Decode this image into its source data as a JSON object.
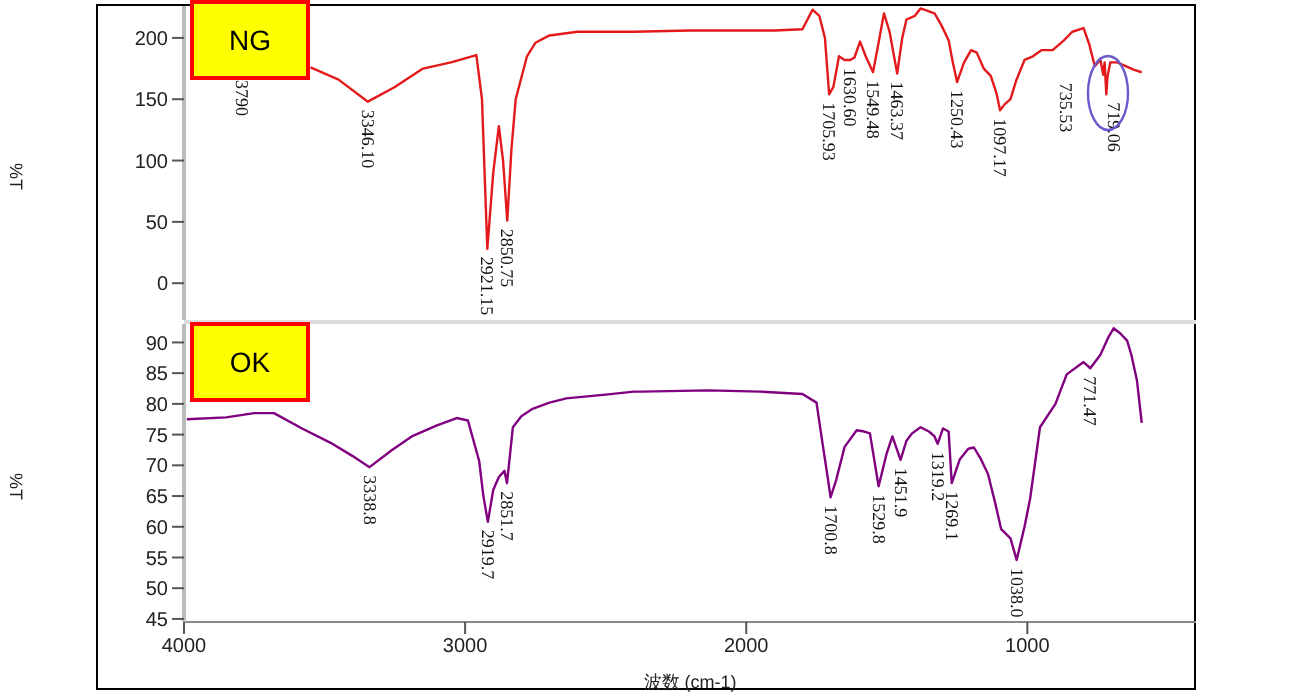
{
  "chart_data": [
    {
      "type": "line",
      "title": "NG",
      "ylabel": "%T",
      "xlim": [
        4000,
        400
      ],
      "xticks": [
        4000,
        3000,
        2000,
        1000
      ],
      "ylim": [
        -30,
        226
      ],
      "yticks": [
        0,
        50,
        100,
        150,
        200
      ],
      "tick_labels": "y",
      "grid": false,
      "legend": false,
      "marker": "none",
      "line_style": "solid",
      "x": [
        3550,
        3450,
        3346,
        3250,
        3150,
        3050,
        2960,
        2940,
        2921,
        2900,
        2880,
        2865,
        2850,
        2835,
        2820,
        2780,
        2750,
        2700,
        2600,
        2400,
        2200,
        2000,
        1900,
        1800,
        1764,
        1740,
        1720,
        1705,
        1690,
        1670,
        1650,
        1630,
        1615,
        1595,
        1575,
        1549,
        1530,
        1510,
        1490,
        1463,
        1445,
        1430,
        1400,
        1380,
        1355,
        1330,
        1305,
        1280,
        1265,
        1250,
        1225,
        1200,
        1180,
        1155,
        1130,
        1110,
        1097,
        1080,
        1060,
        1040,
        1010,
        980,
        950,
        910,
        870,
        840,
        800,
        780,
        760,
        740,
        735,
        730,
        725,
        719,
        715,
        705,
        680,
        650,
        620,
        593
      ],
      "series": [
        {
          "color": "#e31a1c",
          "values": [
            176,
            166,
            148,
            160,
            175,
            180,
            186,
            150,
            28,
            90,
            128,
            100,
            51,
            110,
            150,
            185,
            196,
            202,
            205,
            205,
            206,
            206,
            206,
            207,
            223,
            218,
            200,
            154,
            160,
            185,
            182,
            182,
            184,
            197,
            185,
            172,
            195,
            220,
            205,
            171,
            200,
            215,
            218,
            224,
            222,
            220,
            210,
            198,
            180,
            164,
            180,
            190,
            188,
            175,
            169,
            155,
            141,
            146,
            150,
            165,
            182,
            185,
            190,
            190,
            198,
            205,
            208,
            195,
            177,
            182,
            176,
            170,
            180,
            154,
            168,
            180,
            180,
            177,
            174,
            172
          ]
        }
      ],
      "annotations": [
        "3790",
        {
          "text": "3346.10",
          "x": 3346,
          "y": 148
        },
        {
          "text": "2921.15",
          "x": 2921,
          "y": 28
        },
        {
          "text": "2850.75",
          "x": 2850,
          "y": 51
        },
        {
          "text": "1705.93",
          "x": 1705,
          "y": 154
        },
        {
          "text": "1630.60",
          "x": 1630,
          "y": 182
        },
        {
          "text": "1549.48",
          "x": 1549,
          "y": 172
        },
        {
          "text": "1463.37",
          "x": 1463,
          "y": 171
        },
        {
          "text": "1250.43",
          "x": 1250,
          "y": 164
        },
        {
          "text": "1097.17",
          "x": 1097,
          "y": 141
        },
        {
          "text": "735.53",
          "x": 735,
          "y": 170
        },
        {
          "text": "719.06",
          "x": 719,
          "y": 154
        }
      ]
    },
    {
      "type": "line",
      "title": "OK",
      "xlabel": "波数 (cm-1)",
      "ylabel": "%T",
      "xlim": [
        4000,
        400
      ],
      "xticks": [
        4000,
        3000,
        2000,
        1000
      ],
      "ylim": [
        44.5,
        93
      ],
      "yticks": [
        45,
        50,
        55,
        60,
        65,
        70,
        75,
        80,
        85,
        90
      ],
      "grid": false,
      "legend": false,
      "marker": "none",
      "line_style": "solid",
      "x": [
        3990,
        3850,
        3750,
        3680,
        3580,
        3480,
        3400,
        3340,
        3260,
        3190,
        3100,
        3030,
        2990,
        2950,
        2935,
        2919,
        2900,
        2880,
        2860,
        2851,
        2830,
        2800,
        2760,
        2700,
        2640,
        2500,
        2400,
        2371,
        2136,
        1950,
        1800,
        1750,
        1729,
        1710,
        1700,
        1680,
        1650,
        1607,
        1580,
        1560,
        1529,
        1500,
        1480,
        1451,
        1430,
        1410,
        1380,
        1350,
        1330,
        1319,
        1300,
        1280,
        1269,
        1240,
        1210,
        1190,
        1165,
        1140,
        1115,
        1093,
        1060,
        1038,
        1010,
        990,
        955,
        900,
        860,
        800,
        776,
        740,
        710,
        693,
        670,
        645,
        630,
        610,
        593
      ],
      "series": [
        {
          "color": "#800080",
          "values": [
            77.5,
            77.8,
            78.5,
            78.5,
            76,
            73.7,
            71.5,
            69.7,
            72.5,
            74.7,
            76.5,
            77.7,
            77.3,
            70.7,
            65,
            60.8,
            66,
            68.1,
            69.1,
            67.1,
            76.2,
            78,
            79.2,
            80.2,
            80.9,
            81.5,
            82,
            82,
            82.2,
            82,
            81.6,
            80.2,
            73.7,
            68,
            64.8,
            67.6,
            73,
            75.7,
            75.5,
            75.2,
            66.6,
            72,
            74.7,
            70.9,
            74,
            75.2,
            76.2,
            75.5,
            74.7,
            73.5,
            76,
            75.5,
            67.1,
            71,
            72.7,
            72.9,
            71,
            68.6,
            64,
            59.6,
            58.1,
            54.6,
            60,
            64.6,
            76.2,
            80,
            84.8,
            86.8,
            85.8,
            88,
            91,
            92.3,
            91.5,
            90.3,
            88,
            83.8,
            76.9
          ]
        }
      ],
      "annotations": [
        {
          "text": "3338.8",
          "x": 3338,
          "y": 69.7
        },
        {
          "text": "2919.7",
          "x": 2919,
          "y": 60.8
        },
        {
          "text": "2851.7",
          "x": 2851,
          "y": 67.1
        },
        {
          "text": "1700.8",
          "x": 1700,
          "y": 64.8
        },
        {
          "text": "1529.8",
          "x": 1529,
          "y": 66.6
        },
        {
          "text": "1451.9",
          "x": 1451,
          "y": 70.9
        },
        {
          "text": "1319.2",
          "x": 1319,
          "y": 73.5
        },
        {
          "text": "1269.1",
          "x": 1269,
          "y": 67.1
        },
        {
          "text": "1038.0",
          "x": 1038,
          "y": 54.6
        },
        {
          "text": "771.47",
          "x": 776,
          "y": 85.8
        }
      ]
    }
  ]
}
